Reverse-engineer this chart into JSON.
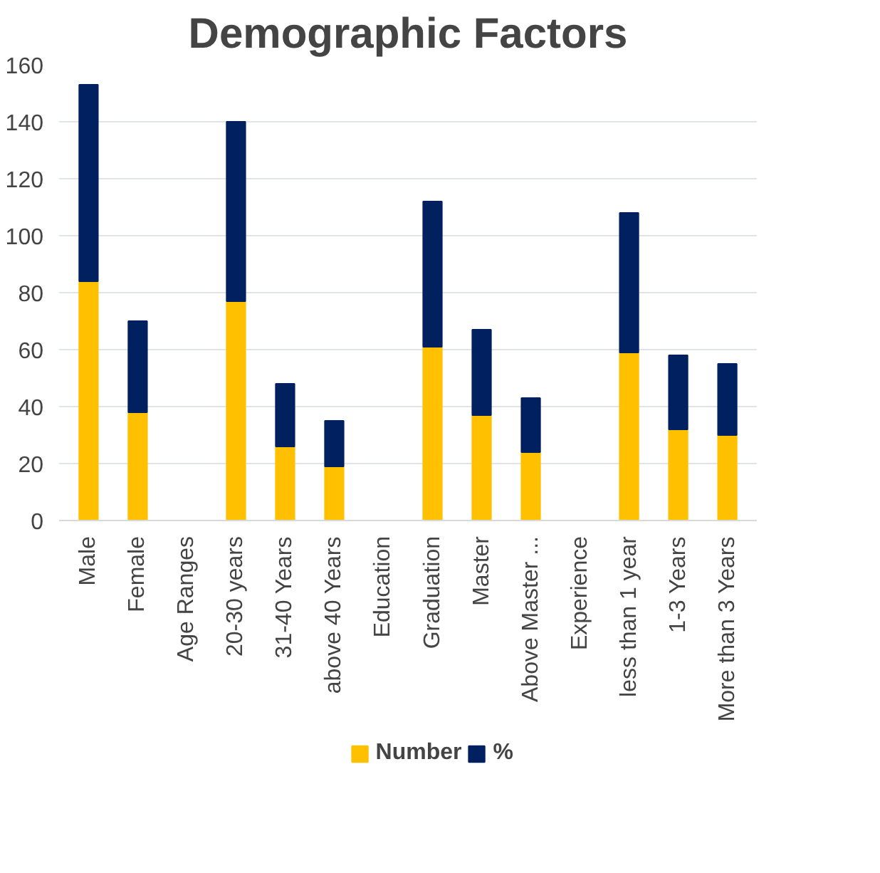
{
  "chart_data": {
    "type": "bar",
    "title": "Demographic Factors",
    "stacked": true,
    "categories": [
      "Male",
      "Female",
      "Age Ranges",
      "20-30 years",
      "31-40 Years",
      "above 40 Years",
      "Education",
      "Graduation",
      "Master",
      "Above Master ...",
      "Experience",
      "less than 1 year",
      "1-3 Years",
      "More than 3 Years"
    ],
    "series": [
      {
        "name": "Number",
        "color": "#ffc000",
        "values": [
          84,
          38,
          null,
          77,
          26,
          19,
          null,
          61,
          37,
          24,
          null,
          59,
          32,
          30
        ]
      },
      {
        "name": "%",
        "color": "#002060",
        "values": [
          69,
          32,
          null,
          63,
          22,
          16,
          null,
          51,
          30,
          19,
          null,
          49,
          26,
          25
        ]
      }
    ],
    "ylim": [
      0,
      160
    ],
    "yticks": [
      0,
      20,
      40,
      60,
      80,
      100,
      120,
      140,
      160
    ],
    "grid": "y",
    "legend": "bottom"
  }
}
